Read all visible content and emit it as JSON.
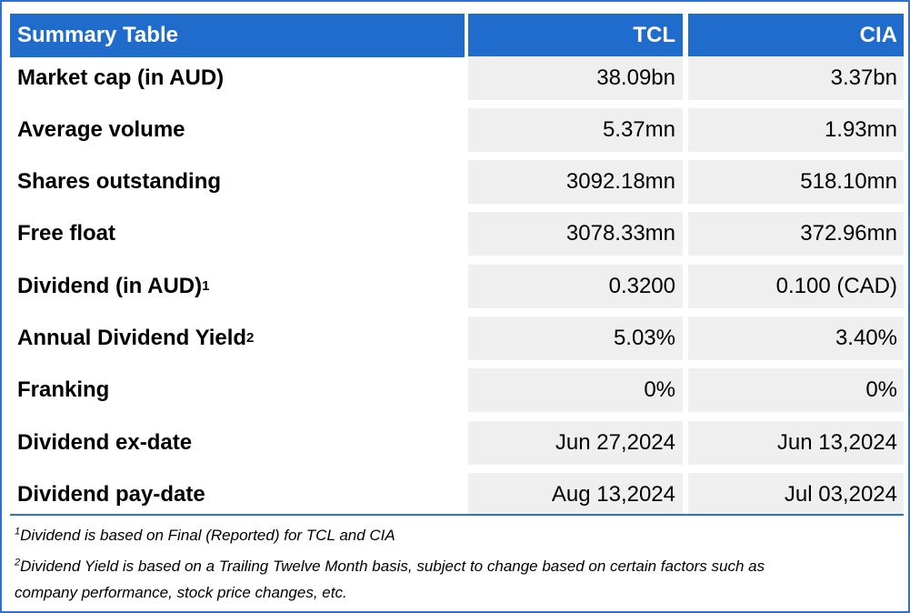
{
  "table": {
    "header": {
      "label": "Summary Table",
      "col1": "TCL",
      "col2": "CIA"
    },
    "rows": [
      {
        "label": "Market cap (in AUD)",
        "sup": "",
        "tcl": "38.09bn",
        "cia": "3.37bn"
      },
      {
        "label": "Average volume",
        "sup": "",
        "tcl": "5.37mn",
        "cia": "1.93mn"
      },
      {
        "label": "Shares outstanding",
        "sup": "",
        "tcl": "3092.18mn",
        "cia": "518.10mn"
      },
      {
        "label": "Free float",
        "sup": "",
        "tcl": "3078.33mn",
        "cia": "372.96mn"
      },
      {
        "label": "Dividend (in AUD)",
        "sup": "1",
        "tcl": "0.3200",
        "cia": "0.100 (CAD)"
      },
      {
        "label": "Annual Dividend Yield",
        "sup": "2",
        "tcl": "5.03%",
        "cia": "3.40%"
      },
      {
        "label": "Franking",
        "sup": "",
        "tcl": "0%",
        "cia": "0%"
      },
      {
        "label": "Dividend ex-date",
        "sup": "",
        "tcl": "Jun 27,2024",
        "cia": "Jun 13,2024"
      },
      {
        "label": "Dividend pay-date",
        "sup": "",
        "tcl": "Aug 13,2024",
        "cia": "Jul 03,2024"
      }
    ]
  },
  "footnotes": [
    {
      "num": "1",
      "text": "Dividend is based on Final (Reported) for TCL and CIA"
    },
    {
      "num": "2",
      "text": "Dividend Yield is based on a Trailing Twelve Month basis, subject to change based on certain factors such as"
    },
    {
      "num": "",
      "text": "company performance, stock price changes, etc."
    }
  ],
  "colors": {
    "header_bg": "#1f6ccd",
    "cell_bg": "#efefef",
    "border": "#2f6fd6"
  }
}
